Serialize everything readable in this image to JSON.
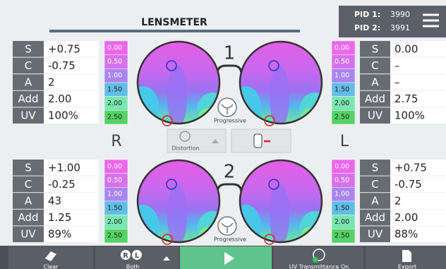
{
  "header": {
    "title": "LENSMETER",
    "pid": [
      {
        "label": "PID 1:",
        "value": "3990"
      },
      {
        "label": "PID 2:",
        "value": "3991"
      }
    ]
  },
  "panels": [
    {
      "number": "1",
      "lens_type": "Progressive",
      "right": {
        "scale": [
          "0.00",
          "0.50",
          "1.00",
          "1.50",
          "2.00",
          "2.50"
        ],
        "rows": [
          {
            "label": "S",
            "value": "+0.75"
          },
          {
            "label": "C",
            "value": "-0.75"
          },
          {
            "label": "A",
            "value": "2"
          },
          {
            "label": "Add",
            "value": "2.00"
          },
          {
            "label": "UV",
            "value": "100%"
          }
        ]
      },
      "left": {
        "scale": [
          "0.00",
          "0.50",
          "1.00",
          "1.50",
          "2.00",
          "2.50"
        ],
        "rows": [
          {
            "label": "S",
            "value": "0.00"
          },
          {
            "label": "C",
            "value": "–"
          },
          {
            "label": "A",
            "value": "–"
          },
          {
            "label": "Add",
            "value": "2.75"
          },
          {
            "label": "UV",
            "value": "100%"
          }
        ]
      }
    },
    {
      "number": "2",
      "lens_type": "Progressive",
      "right": {
        "scale": [
          "0.00",
          "0.50",
          "1.00",
          "1.50",
          "2.00",
          "2.50"
        ],
        "rows": [
          {
            "label": "S",
            "value": "+1.00"
          },
          {
            "label": "C",
            "value": "-0.25"
          },
          {
            "label": "A",
            "value": "43"
          },
          {
            "label": "Add",
            "value": "1.25"
          },
          {
            "label": "UV",
            "value": "89%"
          }
        ]
      },
      "left": {
        "scale": [
          "0.00",
          "0.50",
          "1.00",
          "1.50",
          "2.00",
          "2.50"
        ],
        "rows": [
          {
            "label": "S",
            "value": "+0.75"
          },
          {
            "label": "C",
            "value": "-0.75"
          },
          {
            "label": "A",
            "value": "2"
          },
          {
            "label": "Add",
            "value": "2.00"
          },
          {
            "label": "UV",
            "value": "88%"
          }
        ]
      }
    }
  ],
  "side_labels": {
    "right": "R",
    "left": "L"
  },
  "tools": {
    "distortion": "Distortion"
  },
  "toolbar": {
    "clear": "Clear",
    "eye_right": "R",
    "eye_left": "L",
    "both": "Both",
    "uv": "UV Transmittance On",
    "export": "Export"
  }
}
